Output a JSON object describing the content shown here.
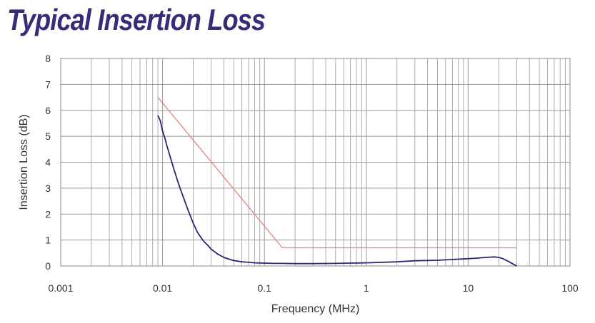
{
  "chart_data": {
    "type": "line",
    "title": "Typical Insertion Loss",
    "xlabel": "Frequency (MHz)",
    "ylabel": "Insertion Loss (dB)",
    "xscale": "log",
    "xlim": [
      0.001,
      100
    ],
    "ylim": [
      0,
      8
    ],
    "x_tick_labels": [
      "0.001",
      "0.01",
      "0.1",
      "1",
      "10",
      "100"
    ],
    "y_tick_labels": [
      "0",
      "1",
      "2",
      "3",
      "4",
      "5",
      "6",
      "7",
      "8"
    ],
    "grid": true,
    "colors": {
      "measured": "#2b2770",
      "limit": "#e8827f",
      "title": "#3a2a7a",
      "grid": "#999999"
    },
    "series": [
      {
        "color": "#2b2770",
        "x": [
          0.009,
          0.0095,
          0.01,
          0.0105,
          0.011,
          0.012,
          0.013,
          0.014,
          0.015,
          0.016,
          0.018,
          0.02,
          0.022,
          0.025,
          0.028,
          0.03,
          0.035,
          0.04,
          0.045,
          0.05,
          0.06,
          0.07,
          0.08,
          0.1,
          0.12,
          0.15,
          0.2,
          0.3,
          0.5,
          0.7,
          1,
          2,
          3,
          5,
          7,
          10,
          12,
          15,
          18,
          20,
          22,
          25,
          28,
          30
        ],
        "y": [
          5.8,
          5.6,
          5.2,
          4.95,
          4.65,
          4.15,
          3.7,
          3.3,
          2.95,
          2.65,
          2.1,
          1.65,
          1.3,
          0.98,
          0.78,
          0.65,
          0.45,
          0.33,
          0.26,
          0.21,
          0.16,
          0.14,
          0.12,
          0.11,
          0.1,
          0.1,
          0.09,
          0.09,
          0.1,
          0.11,
          0.12,
          0.16,
          0.2,
          0.22,
          0.25,
          0.28,
          0.3,
          0.33,
          0.35,
          0.33,
          0.28,
          0.17,
          0.06,
          0.0
        ]
      },
      {
        "color": "#e8827f",
        "x": [
          0.009,
          0.15,
          30
        ],
        "y": [
          6.5,
          0.7,
          0.7
        ]
      }
    ]
  }
}
